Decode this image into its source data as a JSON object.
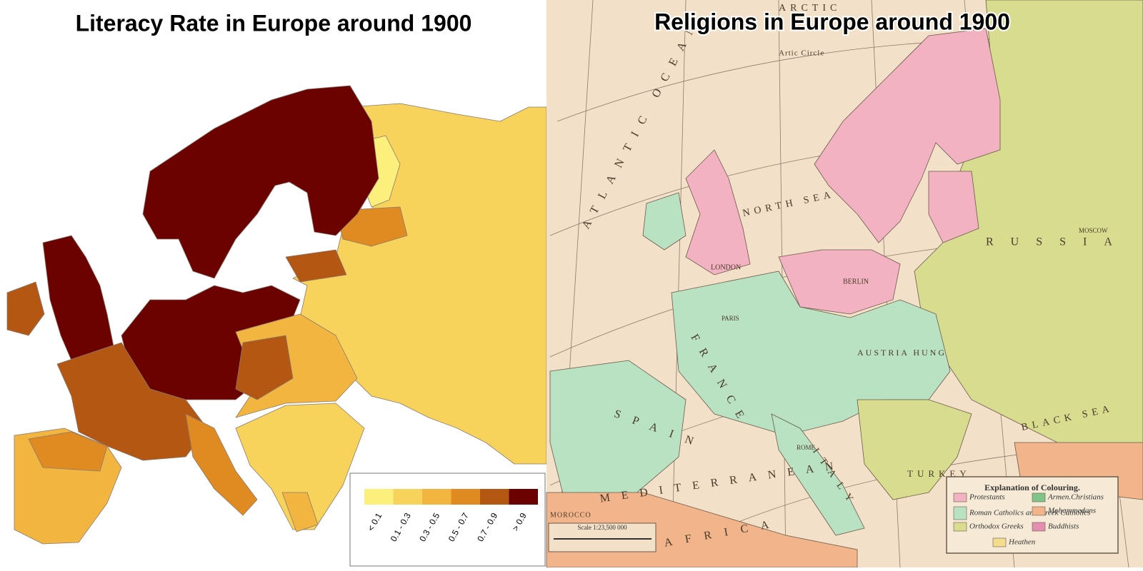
{
  "left_map": {
    "title": "Literacy Rate in Europe around 1900",
    "legend": [
      {
        "label": "< 0.1",
        "color": "#fdef7c"
      },
      {
        "label": "0.1 - 0.3",
        "color": "#f8d35c"
      },
      {
        "label": "0.3 - 0.5",
        "color": "#f2b53f"
      },
      {
        "label": "0.5 - 0.7",
        "color": "#e08a22"
      },
      {
        "label": "0.7 - 0.9",
        "color": "#b35712"
      },
      {
        "label": "> 0.9",
        "color": "#6b0200"
      }
    ]
  },
  "right_map": {
    "title": "Religions in Europe around 1900",
    "labels": {
      "arctic": "ARCTIC",
      "arctic_circle": "Artic Circle",
      "atlantic": "ATLANTIC OCEAN",
      "north_sea": "NORTH SEA",
      "mediterranean": "MEDITERRANEAN",
      "black_sea": "BLACK SEA",
      "russia": "RUSSIA",
      "austria": "AUSTRIA HUNG",
      "france": "FRANCE",
      "spain": "SPAIN",
      "italy": "ITALY",
      "turkey": "TURKEY",
      "morocco": "MOROCCO",
      "africa": "AFRICA",
      "london": "LONDON",
      "paris": "PARIS",
      "berlin": "BERLIN",
      "moscow": "MOSCOW",
      "rome": "ROME"
    },
    "legend": {
      "title": "Explanation of Colouring.",
      "items": [
        {
          "label": "Protestants",
          "color": "#f2b2c2"
        },
        {
          "label": "Armen.Christians",
          "color": "#7fc58a"
        },
        {
          "label": "Roman Catholics and Greek Catholics",
          "color": "#b9e2c2"
        },
        {
          "label": "Mohammedans",
          "color": "#f2b48a"
        },
        {
          "label": "Orthodox Greeks",
          "color": "#d7dc8e"
        },
        {
          "label": "Buddhists",
          "color": "#e58fb0"
        },
        {
          "label": "Heathen",
          "color": "#f3dc8c"
        }
      ]
    },
    "scale": "Scale 1:23,500 000"
  }
}
